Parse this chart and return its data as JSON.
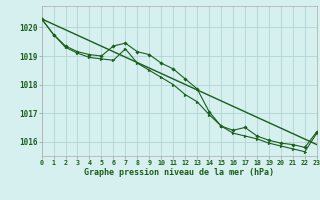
{
  "title": "Graphe pression niveau de la mer (hPa)",
  "background_color": "#d6f0f0",
  "grid_color": "#b0d4d4",
  "line_color": "#1a5e1a",
  "xlim": [
    0,
    23
  ],
  "ylim": [
    1015.5,
    1020.75
  ],
  "yticks": [
    1016,
    1017,
    1018,
    1019,
    1020
  ],
  "xticks": [
    0,
    1,
    2,
    3,
    4,
    5,
    6,
    7,
    8,
    9,
    10,
    11,
    12,
    13,
    14,
    15,
    16,
    17,
    18,
    19,
    20,
    21,
    22,
    23
  ],
  "series1_x": [
    0,
    1,
    2,
    3,
    4,
    5,
    6,
    7,
    8,
    9,
    10,
    11,
    12,
    13,
    14,
    15,
    16,
    17,
    18,
    19,
    20,
    21,
    22,
    23
  ],
  "series1_y": [
    1020.3,
    1019.75,
    1019.35,
    1019.15,
    1019.05,
    1019.0,
    1019.35,
    1019.45,
    1019.15,
    1019.05,
    1018.75,
    1018.55,
    1018.2,
    1017.85,
    1017.05,
    1016.55,
    1016.4,
    1016.5,
    1016.2,
    1016.05,
    1015.95,
    1015.9,
    1015.8,
    1016.35
  ],
  "series2_x": [
    0,
    1,
    2,
    3,
    4,
    5,
    6,
    7,
    8,
    9,
    10,
    11,
    12,
    13,
    14,
    15,
    16,
    17,
    18,
    19,
    20,
    21,
    22,
    23
  ],
  "series2_y": [
    1020.3,
    1019.75,
    1019.3,
    1019.1,
    1018.95,
    1018.9,
    1018.85,
    1019.25,
    1018.75,
    1018.5,
    1018.25,
    1018.0,
    1017.65,
    1017.4,
    1016.95,
    1016.55,
    1016.3,
    1016.2,
    1016.1,
    1015.95,
    1015.85,
    1015.75,
    1015.65,
    1016.3
  ],
  "series3_x": [
    0,
    23
  ],
  "series3_y": [
    1020.3,
    1015.9
  ],
  "marker1": "D",
  "marker2": ">"
}
